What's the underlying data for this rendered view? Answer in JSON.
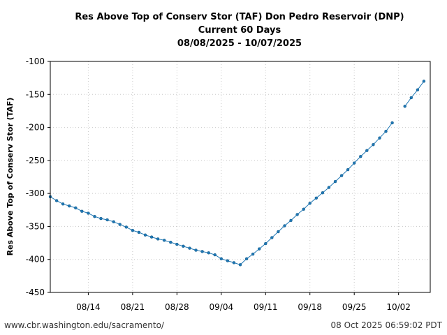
{
  "chart_data": {
    "type": "line",
    "title_lines": [
      "Res Above Top of Conserv Stor (TAF) Don Pedro Reservoir (DNP)",
      "Current 60 Days",
      "08/08/2025 - 10/07/2025"
    ],
    "ylabel": "Res Above Top of Conserv Stor (TAF)",
    "xlabel": "",
    "ylim": [
      -450,
      -100
    ],
    "yticks": [
      -100,
      -150,
      -200,
      -250,
      -300,
      -350,
      -400,
      -450
    ],
    "xlim": [
      "2025-08-08",
      "2025-10-07"
    ],
    "xticks": [
      {
        "date": "2025-08-14",
        "label": "08/14"
      },
      {
        "date": "2025-08-21",
        "label": "08/21"
      },
      {
        "date": "2025-08-28",
        "label": "08/28"
      },
      {
        "date": "2025-09-04",
        "label": "09/04"
      },
      {
        "date": "2025-09-11",
        "label": "09/11"
      },
      {
        "date": "2025-09-18",
        "label": "09/18"
      },
      {
        "date": "2025-09-25",
        "label": "09/25"
      },
      {
        "date": "2025-10-02",
        "label": "10/02"
      }
    ],
    "grid": true,
    "line_color": "#1f77b4",
    "series": [
      {
        "x": [
          "2025-08-08",
          "2025-08-09",
          "2025-08-10",
          "2025-08-11",
          "2025-08-12",
          "2025-08-13",
          "2025-08-14",
          "2025-08-15",
          "2025-08-16",
          "2025-08-17",
          "2025-08-18",
          "2025-08-19",
          "2025-08-20",
          "2025-08-21",
          "2025-08-22",
          "2025-08-23",
          "2025-08-24",
          "2025-08-25",
          "2025-08-26",
          "2025-08-27",
          "2025-08-28",
          "2025-08-29",
          "2025-08-30",
          "2025-08-31",
          "2025-09-01",
          "2025-09-02",
          "2025-09-03",
          "2025-09-04",
          "2025-09-05",
          "2025-09-06",
          "2025-09-07",
          "2025-09-08",
          "2025-09-09",
          "2025-09-10",
          "2025-09-11",
          "2025-09-12",
          "2025-09-13",
          "2025-09-14",
          "2025-09-15",
          "2025-09-16",
          "2025-09-17",
          "2025-09-18",
          "2025-09-19",
          "2025-09-20",
          "2025-09-21",
          "2025-09-22",
          "2025-09-23",
          "2025-09-24",
          "2025-09-25",
          "2025-09-26",
          "2025-09-27",
          "2025-09-28",
          "2025-09-29",
          "2025-09-30",
          "2025-10-01"
        ],
        "values": [
          -305,
          -311,
          -316,
          -319,
          -322,
          -327,
          -330,
          -335,
          -338,
          -340,
          -343,
          -347,
          -351,
          -356,
          -359,
          -363,
          -366,
          -369,
          -371,
          -374,
          -377,
          -380,
          -383,
          -386,
          -388,
          -390,
          -393,
          -399,
          -402,
          -405,
          -408,
          -399,
          -392,
          -384,
          -376,
          -367,
          -358,
          -349,
          -341,
          -332,
          -324,
          -315,
          -307,
          -299,
          -291,
          -282,
          -273,
          -264,
          -254,
          -244,
          -235,
          -226,
          -216,
          -206,
          -193
        ]
      },
      {
        "x": [
          "2025-10-03",
          "2025-10-04",
          "2025-10-05",
          "2025-10-06"
        ],
        "values": [
          -168,
          -155,
          -143,
          -130
        ]
      }
    ]
  },
  "footer": {
    "source_url": "www.cbr.washington.edu/sacramento/",
    "timestamp": "08 Oct 2025 06:59:02 PDT"
  }
}
